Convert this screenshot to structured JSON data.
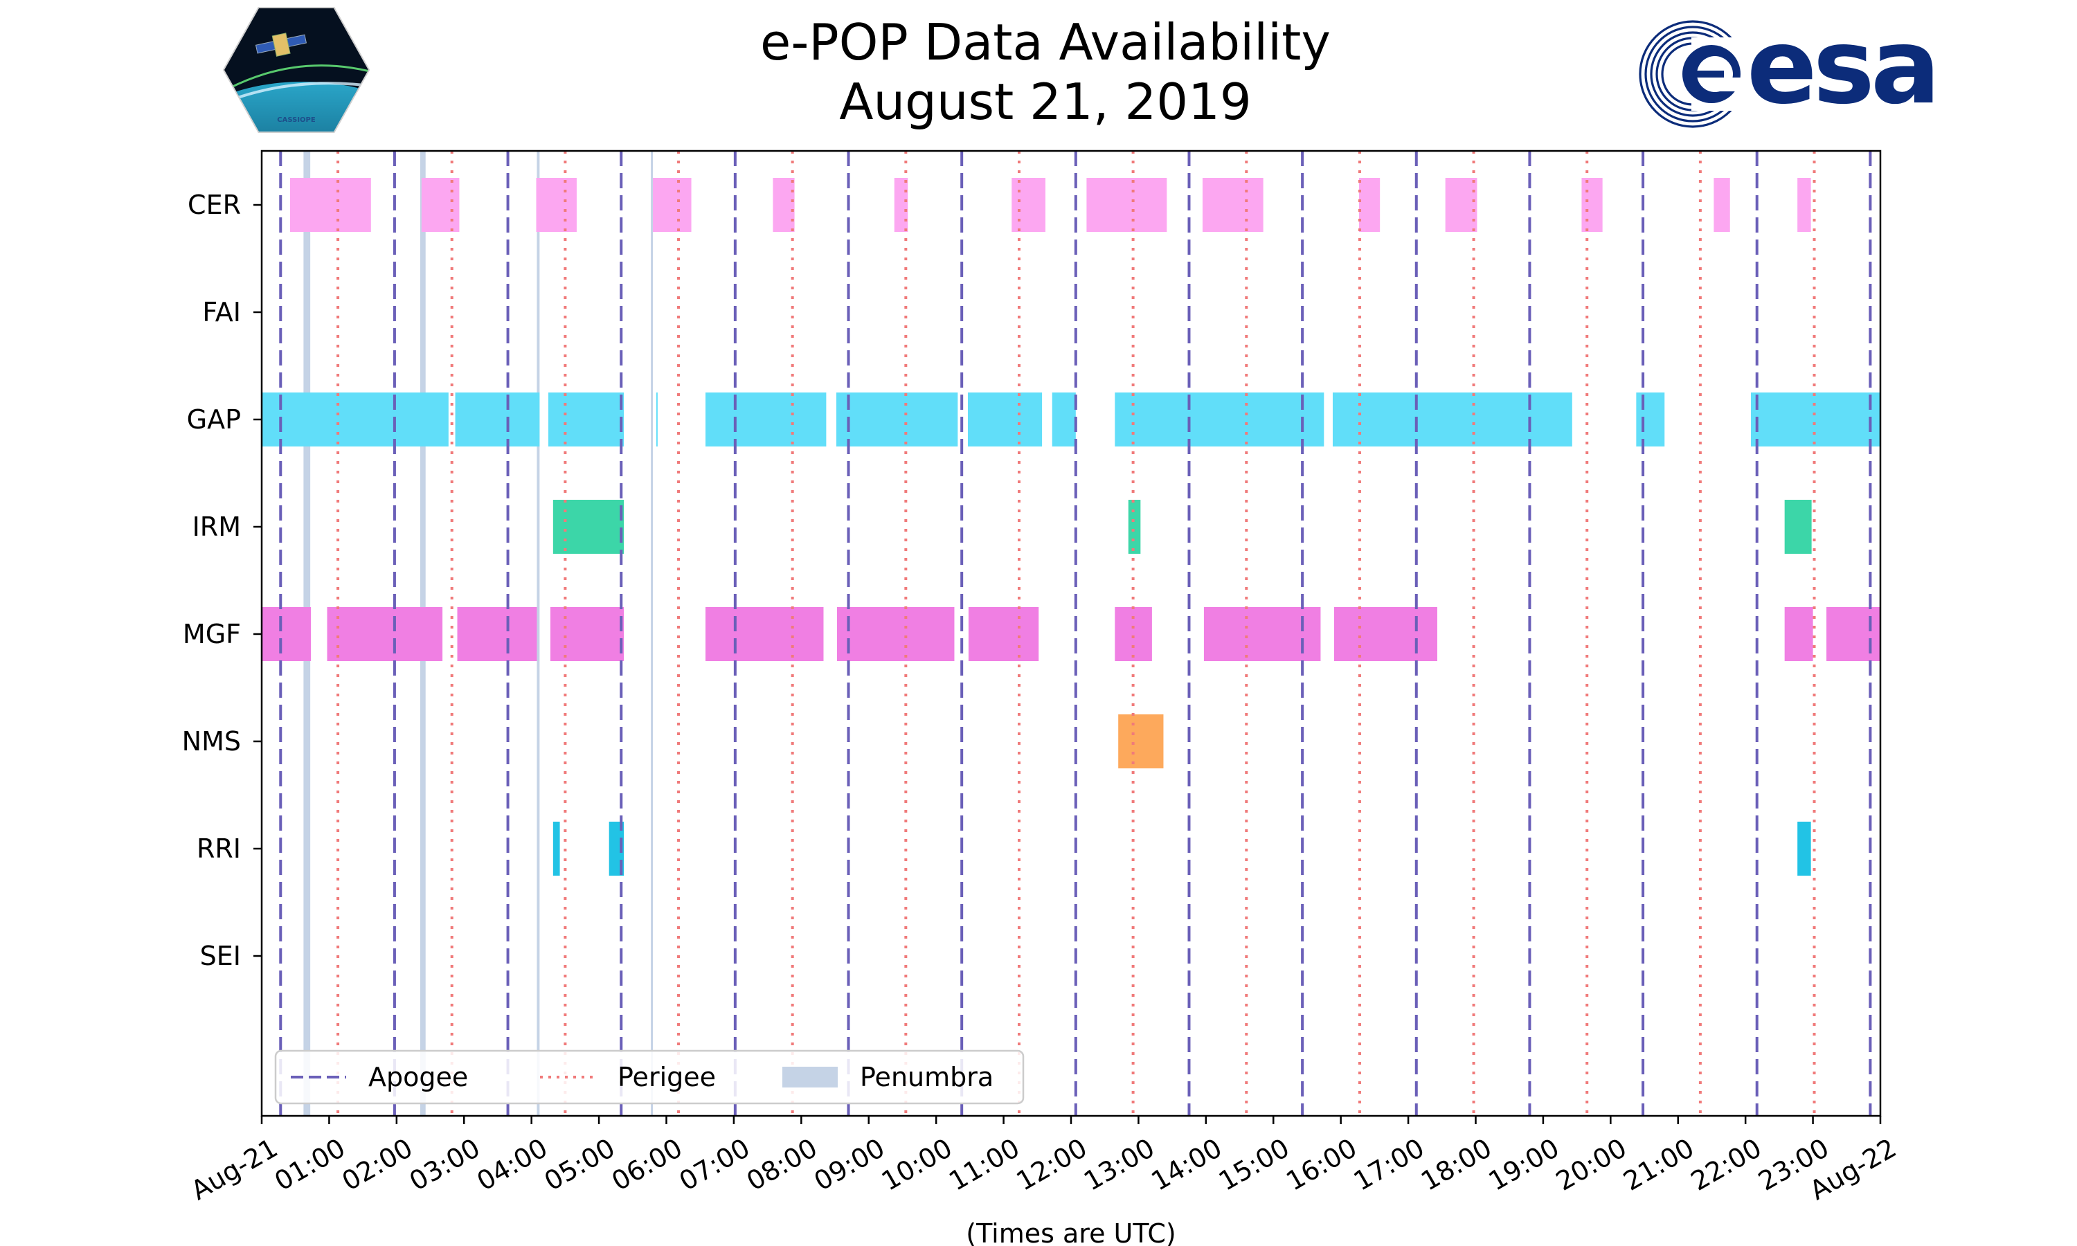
{
  "chart_data": {
    "type": "timeline",
    "title": [
      "e-POP Data Availability",
      "August 21, 2019"
    ],
    "xlabel": "(Times are UTC)",
    "ylabel": "",
    "x_unit": "hours UTC",
    "xlim": [
      0,
      24
    ],
    "x_ticks": [
      {
        "v": 0,
        "label": "Aug-21"
      },
      {
        "v": 1,
        "label": "01:00"
      },
      {
        "v": 2,
        "label": "02:00"
      },
      {
        "v": 3,
        "label": "03:00"
      },
      {
        "v": 4,
        "label": "04:00"
      },
      {
        "v": 5,
        "label": "05:00"
      },
      {
        "v": 6,
        "label": "06:00"
      },
      {
        "v": 7,
        "label": "07:00"
      },
      {
        "v": 8,
        "label": "08:00"
      },
      {
        "v": 9,
        "label": "09:00"
      },
      {
        "v": 10,
        "label": "10:00"
      },
      {
        "v": 11,
        "label": "11:00"
      },
      {
        "v": 12,
        "label": "12:00"
      },
      {
        "v": 13,
        "label": "13:00"
      },
      {
        "v": 14,
        "label": "14:00"
      },
      {
        "v": 15,
        "label": "15:00"
      },
      {
        "v": 16,
        "label": "16:00"
      },
      {
        "v": 17,
        "label": "17:00"
      },
      {
        "v": 18,
        "label": "18:00"
      },
      {
        "v": 19,
        "label": "19:00"
      },
      {
        "v": 20,
        "label": "20:00"
      },
      {
        "v": 21,
        "label": "21:00"
      },
      {
        "v": 22,
        "label": "22:00"
      },
      {
        "v": 23,
        "label": "23:00"
      },
      {
        "v": 24,
        "label": "Aug-22"
      }
    ],
    "instruments": [
      "CER",
      "FAI",
      "GAP",
      "IRM",
      "MGF",
      "NMS",
      "RRI",
      "SEI"
    ],
    "series": [
      {
        "name": "CER",
        "color": "#fca7f1",
        "intervals": [
          [
            0.42,
            1.62
          ],
          [
            2.37,
            2.93
          ],
          [
            4.07,
            4.67
          ],
          [
            5.8,
            6.37
          ],
          [
            7.58,
            7.9
          ],
          [
            9.38,
            9.58
          ],
          [
            11.12,
            11.62
          ],
          [
            12.23,
            13.42
          ],
          [
            13.95,
            14.85
          ],
          [
            16.27,
            16.58
          ],
          [
            17.55,
            18.02
          ],
          [
            19.57,
            19.88
          ],
          [
            21.53,
            21.77
          ],
          [
            22.77,
            22.97
          ]
        ]
      },
      {
        "name": "FAI",
        "color": "#8dd3c7",
        "intervals": []
      },
      {
        "name": "GAP",
        "color": "#61def9",
        "intervals": [
          [
            0.0,
            2.77
          ],
          [
            2.87,
            4.12
          ],
          [
            4.25,
            5.37
          ],
          [
            5.85,
            5.87
          ],
          [
            6.58,
            8.37
          ],
          [
            8.52,
            10.32
          ],
          [
            10.47,
            11.57
          ],
          [
            11.72,
            12.07
          ],
          [
            12.65,
            15.75
          ],
          [
            15.88,
            19.43
          ],
          [
            20.38,
            20.8
          ],
          [
            22.08,
            24.0
          ]
        ]
      },
      {
        "name": "IRM",
        "color": "#3cd6a8",
        "intervals": [
          [
            4.32,
            5.37
          ],
          [
            12.85,
            13.03
          ],
          [
            22.58,
            22.98
          ]
        ]
      },
      {
        "name": "MGF",
        "color": "#f07fe3",
        "intervals": [
          [
            0.0,
            0.73
          ],
          [
            0.97,
            2.68
          ],
          [
            2.9,
            4.08
          ],
          [
            4.28,
            5.37
          ],
          [
            6.58,
            8.33
          ],
          [
            8.53,
            10.27
          ],
          [
            10.48,
            11.52
          ],
          [
            12.65,
            13.2
          ],
          [
            13.97,
            15.7
          ],
          [
            15.9,
            17.43
          ],
          [
            22.58,
            23.0
          ],
          [
            23.2,
            24.0
          ]
        ]
      },
      {
        "name": "NMS",
        "color": "#fda95c",
        "intervals": [
          [
            12.7,
            13.37
          ]
        ]
      },
      {
        "name": "RRI",
        "color": "#22c3e5",
        "intervals": [
          [
            4.32,
            4.42
          ],
          [
            5.15,
            5.37
          ],
          [
            22.77,
            22.97
          ]
        ]
      },
      {
        "name": "SEI",
        "color": "#cccccc",
        "intervals": []
      }
    ],
    "apogee": [
      0.28,
      1.97,
      3.65,
      5.33,
      7.02,
      8.7,
      10.38,
      12.07,
      13.75,
      15.43,
      17.12,
      18.8,
      20.48,
      22.17,
      23.85
    ],
    "perigee": [
      1.13,
      2.82,
      4.5,
      6.18,
      7.87,
      9.55,
      11.23,
      12.92,
      14.6,
      16.28,
      17.97,
      19.65,
      21.33,
      23.02
    ],
    "penumbra": [
      [
        0.62,
        0.72
      ],
      [
        2.35,
        2.43
      ],
      [
        4.08,
        4.12
      ],
      [
        5.77,
        5.79
      ]
    ],
    "colors": {
      "apogee": "#6a5fb8",
      "perigee": "#f07a7a",
      "penumbra": "#c5d3e6"
    },
    "legend": {
      "location": "lower-left",
      "entries": [
        "Apogee",
        "Perigee",
        "Penumbra"
      ]
    }
  },
  "logos": {
    "left": {
      "text": "CASSIOPE"
    },
    "right": {
      "text": "esa"
    }
  }
}
